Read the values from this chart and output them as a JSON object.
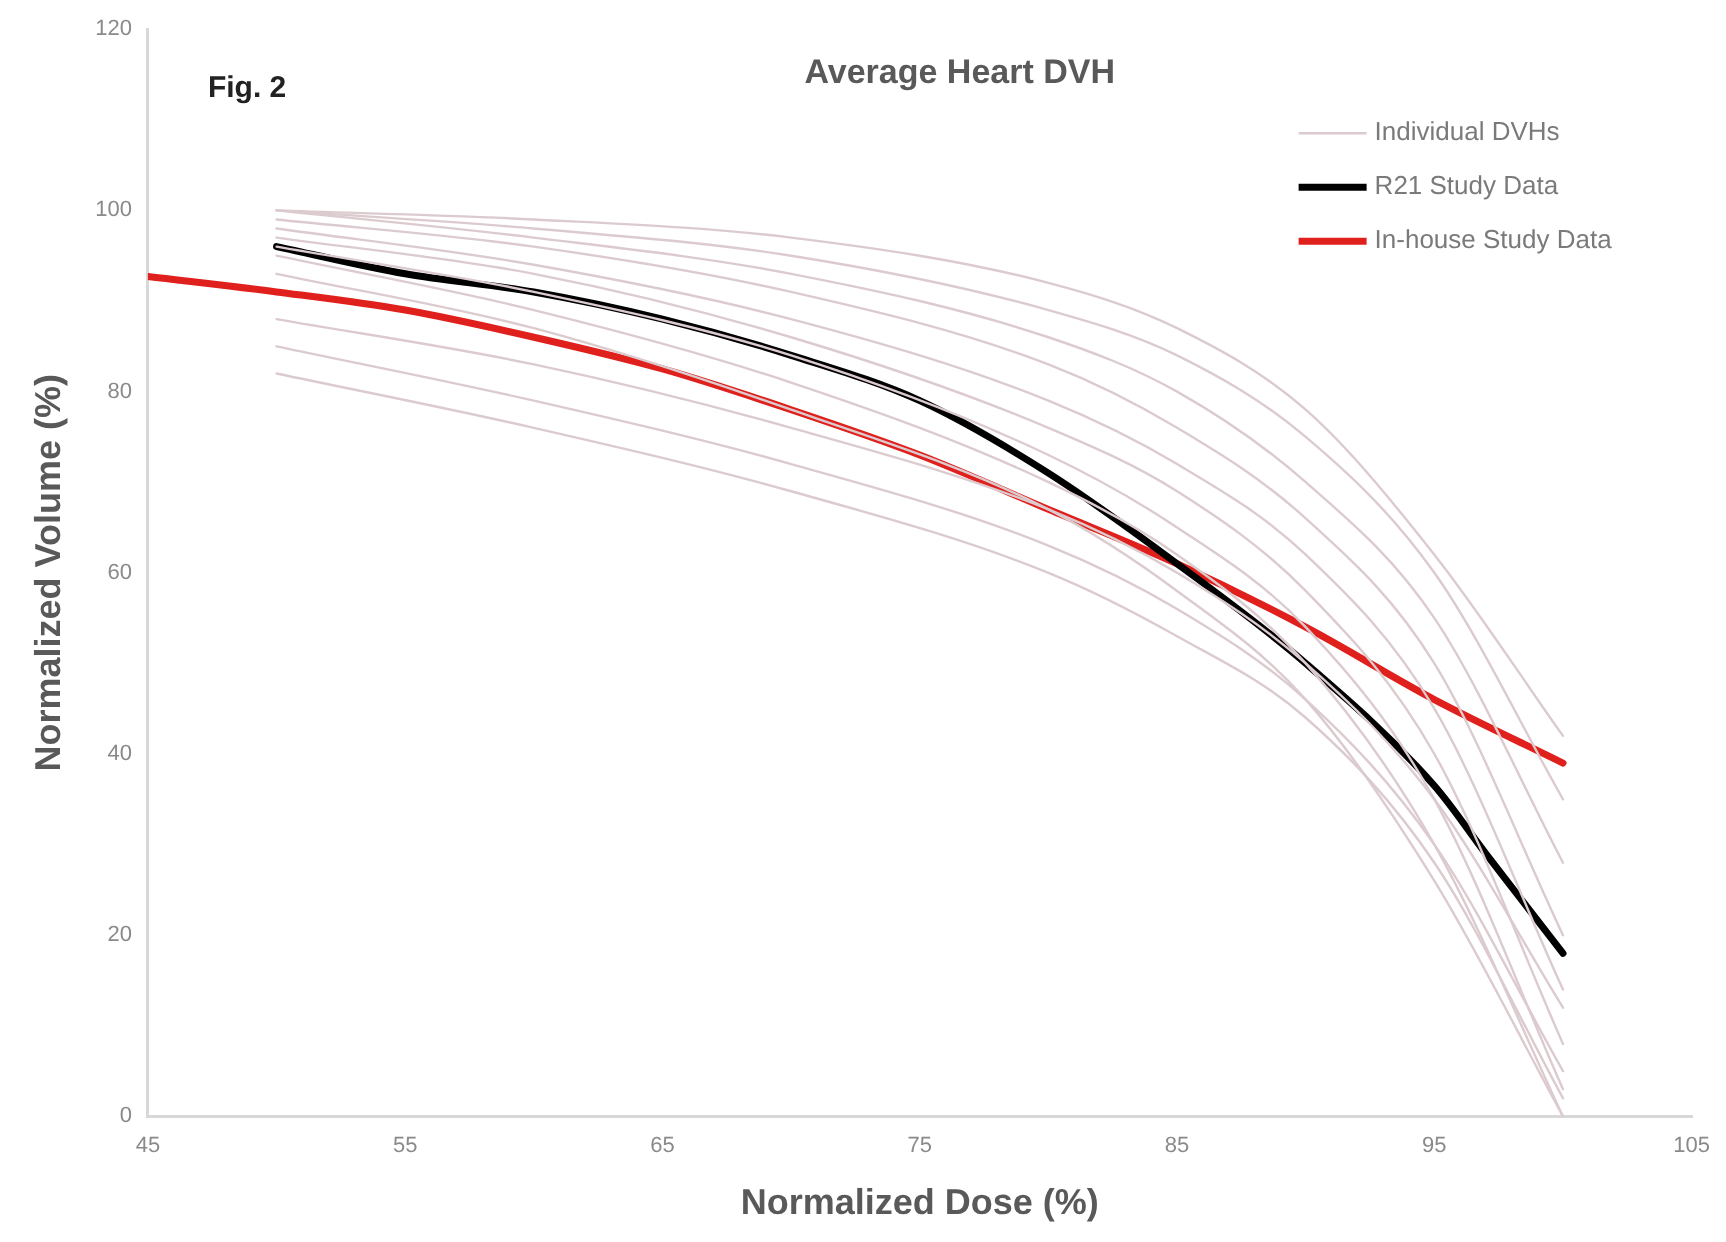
{
  "chart_data": {
    "type": "line",
    "title": "Average Heart DVH",
    "xlabel": "Normalized Dose (%)",
    "ylabel": "Normalized Volume (%)",
    "annotations": [
      "Fig. 2"
    ],
    "x": [
      50,
      60,
      70,
      80,
      85,
      90,
      95,
      100
    ],
    "xlim": [
      45,
      105
    ],
    "xticks": [
      45,
      55,
      65,
      75,
      85,
      95,
      105
    ],
    "ylim": [
      0,
      120
    ],
    "yticks": [
      0,
      20,
      40,
      60,
      80,
      100,
      120
    ],
    "grid": false,
    "legend": "top right",
    "marker": "none",
    "line_style": "solid",
    "series": [
      {
        "name": "Individual DVHs",
        "color": "#dccbce",
        "values": [
          100,
          99,
          97,
          92,
          87,
          78,
          62,
          42
        ]
      },
      {
        "color": "#dccbce",
        "values": [
          100,
          98,
          95,
          89,
          84,
          75,
          60,
          35
        ]
      },
      {
        "color": "#dccbce",
        "values": [
          100,
          97,
          93,
          86,
          80,
          70,
          55,
          28
        ]
      },
      {
        "color": "#dccbce",
        "values": [
          99,
          96,
          91,
          83,
          76,
          66,
          50,
          20
        ]
      },
      {
        "color": "#dccbce",
        "values": [
          98,
          94,
          88,
          79,
          72,
          62,
          45,
          14
        ]
      },
      {
        "color": "#dccbce",
        "values": [
          97,
          93,
          86,
          76,
          69,
          58,
          40,
          8
        ]
      },
      {
        "color": "#dccbce",
        "values": [
          96,
          91,
          84,
          73,
          65,
          54,
          35,
          3
        ]
      },
      {
        "color": "#dccbce",
        "values": [
          95,
          89,
          81,
          70,
          62,
          50,
          30,
          0
        ]
      },
      {
        "color": "#dccbce",
        "values": [
          93,
          87,
          78,
          67,
          58,
          46,
          26,
          0
        ]
      },
      {
        "color": "#dccbce",
        "values": [
          88,
          83,
          76,
          67,
          60,
          50,
          35,
          12
        ]
      },
      {
        "color": "#dccbce",
        "values": [
          85,
          79,
          72,
          63,
          56,
          46,
          30,
          5
        ]
      },
      {
        "color": "#dccbce",
        "values": [
          82,
          76,
          69,
          60,
          53,
          44,
          28,
          2
        ]
      },
      {
        "name": "R21 Study Data",
        "color": "#000000",
        "x": [
          50,
          55,
          60,
          65,
          70,
          75,
          80,
          85,
          90,
          95,
          97,
          100
        ],
        "values": [
          96,
          93,
          91,
          88,
          84,
          79,
          71,
          61,
          50,
          36.5,
          29,
          18
        ]
      },
      {
        "name": "In-house Study Data",
        "color": "#e0201c",
        "x": [
          45,
          50,
          55,
          60,
          65,
          70,
          75,
          80,
          85,
          90,
          95,
          100
        ],
        "values": [
          92.7,
          91,
          89,
          86,
          82.5,
          78,
          73,
          67,
          61,
          54,
          46,
          39
        ]
      }
    ]
  }
}
